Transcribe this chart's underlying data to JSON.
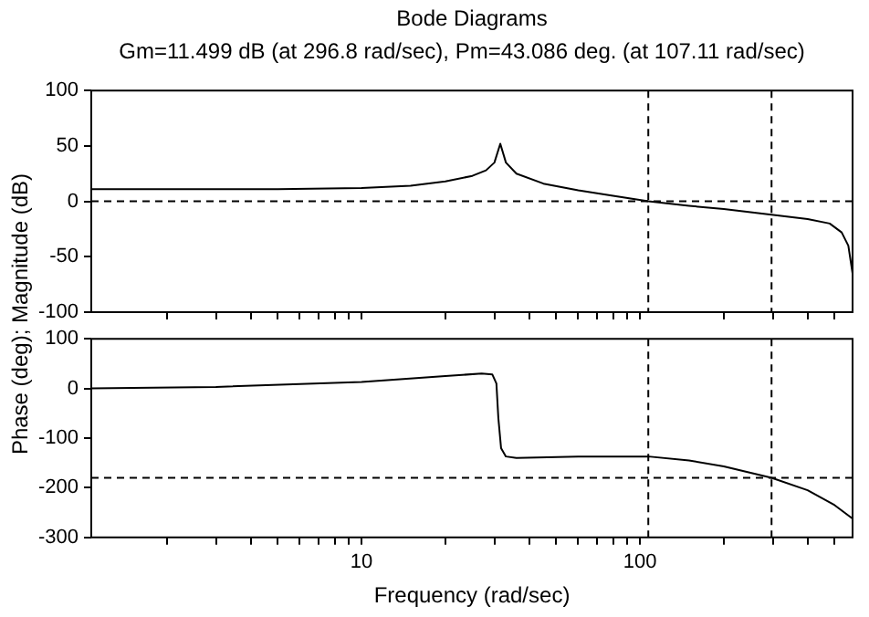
{
  "chart_data": [
    {
      "type": "line",
      "title": "Bode Diagrams",
      "subtitle": "Gm=11.499 dB (at 296.8 rad/sec), Pm=43.086 deg. (at 107.11 rad/sec)",
      "ylabel": "Phase (deg); Magnitude (dB)",
      "log": "x",
      "tick_labels": "y",
      "xlim": [
        1.07,
        580
      ],
      "xticks": [
        {
          "value": 2,
          "label": null
        },
        {
          "value": 3,
          "label": null
        },
        {
          "value": 4,
          "label": null
        },
        {
          "value": 5,
          "label": null
        },
        {
          "value": 6,
          "label": null
        },
        {
          "value": 7,
          "label": null
        },
        {
          "value": 8,
          "label": null
        },
        {
          "value": 9,
          "label": null
        },
        {
          "value": 10,
          "label": null
        },
        {
          "value": 20,
          "label": null
        },
        {
          "value": 30,
          "label": null
        },
        {
          "value": 40,
          "label": null
        },
        {
          "value": 50,
          "label": null
        },
        {
          "value": 60,
          "label": null
        },
        {
          "value": 70,
          "label": null
        },
        {
          "value": 80,
          "label": null
        },
        {
          "value": 90,
          "label": null
        },
        {
          "value": 100,
          "label": null
        },
        {
          "value": 200,
          "label": null
        },
        {
          "value": 300,
          "label": null
        },
        {
          "value": 400,
          "label": null
        },
        {
          "value": 500,
          "label": null
        }
      ],
      "ylim": [
        -100,
        100
      ],
      "yticks": [
        -100,
        -50,
        0,
        50,
        100
      ],
      "series": [
        {
          "color": "#000000",
          "x": [
            1.07,
            5,
            10,
            15,
            20,
            25,
            28,
            30,
            31.5,
            33,
            36,
            45,
            60,
            80,
            107.11,
            150,
            200,
            296.8,
            400,
            480,
            530,
            560,
            580
          ],
          "values": [
            11,
            11,
            12,
            14,
            18,
            23,
            28,
            35,
            52,
            35,
            25,
            16,
            10,
            5,
            0,
            -4,
            -7,
            -12,
            -16,
            -20,
            -28,
            -40,
            -65
          ]
        }
      ],
      "ref_lines": [
        {
          "axis": "y",
          "value": 0,
          "color": "#000000",
          "line_style": "dashed"
        },
        {
          "axis": "x",
          "value": 107.11,
          "color": "#000000",
          "line_style": "dashed"
        },
        {
          "axis": "x",
          "value": 296.8,
          "color": "#000000",
          "line_style": "dashed"
        }
      ]
    },
    {
      "type": "line",
      "xlabel": "Frequency (rad/sec)",
      "log": "x",
      "xlim": [
        1.07,
        580
      ],
      "xticks": [
        {
          "value": 2,
          "label": null
        },
        {
          "value": 3,
          "label": null
        },
        {
          "value": 4,
          "label": null
        },
        {
          "value": 5,
          "label": null
        },
        {
          "value": 6,
          "label": null
        },
        {
          "value": 7,
          "label": null
        },
        {
          "value": 8,
          "label": null
        },
        {
          "value": 9,
          "label": null
        },
        10,
        {
          "value": 20,
          "label": null
        },
        {
          "value": 30,
          "label": null
        },
        {
          "value": 40,
          "label": null
        },
        {
          "value": 50,
          "label": null
        },
        {
          "value": 60,
          "label": null
        },
        {
          "value": 70,
          "label": null
        },
        {
          "value": 80,
          "label": null
        },
        {
          "value": 90,
          "label": null
        },
        100,
        {
          "value": 200,
          "label": null
        },
        {
          "value": 300,
          "label": null
        },
        {
          "value": 400,
          "label": null
        },
        {
          "value": 500,
          "label": null
        }
      ],
      "ylim": [
        -300,
        100
      ],
      "yticks": [
        -300,
        -200,
        -100,
        0,
        100
      ],
      "series": [
        {
          "color": "#000000",
          "x": [
            1.07,
            3,
            10,
            20,
            27,
            29.5,
            30.5,
            31,
            31.7,
            33,
            36,
            60,
            107.11,
            150,
            200,
            296.8,
            400,
            500,
            580
          ],
          "values": [
            0,
            3,
            13,
            25,
            30,
            28,
            10,
            -60,
            -120,
            -137,
            -140,
            -137,
            -137,
            -145,
            -157,
            -180,
            -205,
            -235,
            -262
          ]
        }
      ],
      "ref_lines": [
        {
          "axis": "y",
          "value": -180,
          "color": "#000000",
          "line_style": "dashed"
        },
        {
          "axis": "x",
          "value": 107.11,
          "color": "#000000",
          "line_style": "dashed"
        },
        {
          "axis": "x",
          "value": 296.8,
          "color": "#000000",
          "line_style": "dashed"
        }
      ]
    }
  ]
}
